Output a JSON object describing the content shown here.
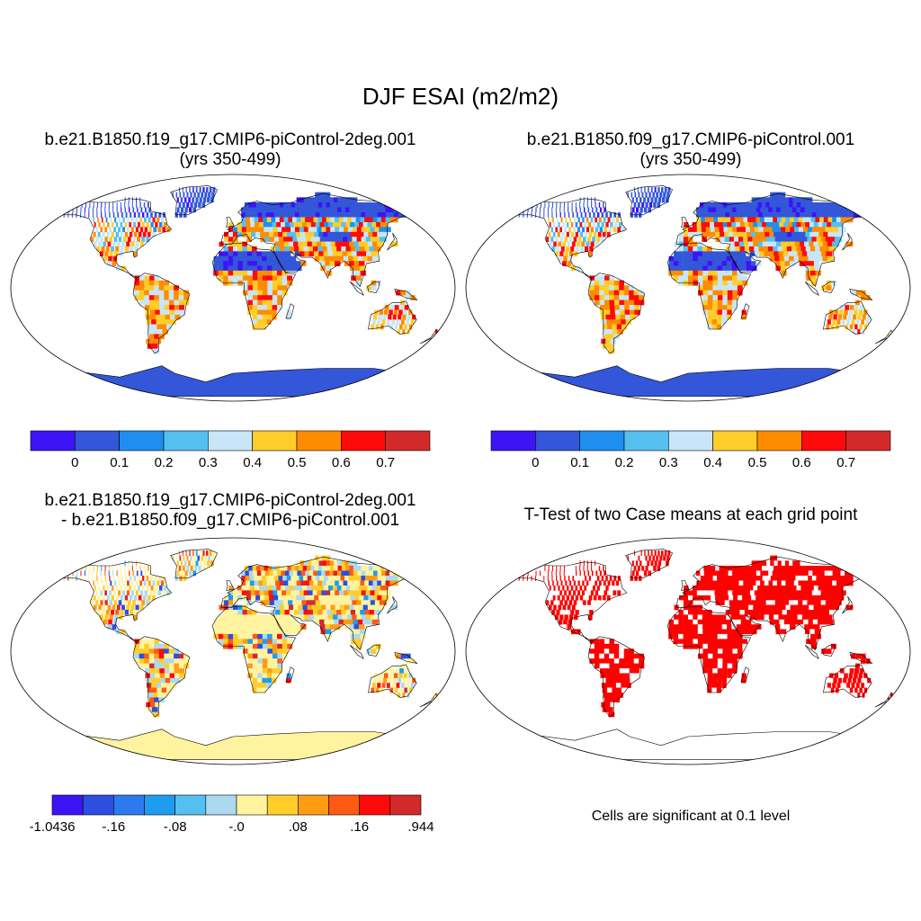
{
  "title": "DJF ESAI (m2/m2)",
  "panels": [
    {
      "id": "case1",
      "title_line1": "b.e21.B1850.f19_g17.CMIP6-piControl-2deg.001",
      "title_line2": "(yrs 350-499)"
    },
    {
      "id": "case2",
      "title_line1": "b.e21.B1850.f09_g17.CMIP6-piControl.001",
      "title_line2": "(yrs 350-499)"
    },
    {
      "id": "diff",
      "title_line1": "b.e21.B1850.f19_g17.CMIP6-piControl-2deg.001",
      "title_line2": "- b.e21.B1850.f09_g17.CMIP6-piControl.001"
    },
    {
      "id": "ttest",
      "title_line1": "T-Test of two Case means at each grid point",
      "note": "Cells are significant at 0.1 level"
    }
  ],
  "colorbar_main": {
    "colors": [
      "#3d14f5",
      "#3357d8",
      "#1e8ff0",
      "#55bff0",
      "#c8e6f8",
      "#ffcd2a",
      "#ff8c00",
      "#ff0a0a",
      "#d22a2a"
    ],
    "labels": [
      "0",
      "0.1",
      "0.2",
      "0.3",
      "0.4",
      "0.5",
      "0.6",
      "0.7"
    ]
  },
  "colorbar_diff": {
    "colors": [
      "#3d14f5",
      "#2c4fe0",
      "#2c7af0",
      "#1e9cf0",
      "#55bff0",
      "#acd9ef",
      "#fff3a0",
      "#ffcd2a",
      "#ff9c14",
      "#ff5a14",
      "#ff0a0a",
      "#d22a2a"
    ],
    "labels": [
      "-1.0436",
      "-.16",
      "-.08",
      "-.0",
      ".08",
      ".16",
      ".944"
    ]
  },
  "colors": {
    "ocean": "#ffffff",
    "significant": "#ff0000",
    "antarctica_main": "#3357d8",
    "antarctica_diff": "#fff3a0"
  }
}
